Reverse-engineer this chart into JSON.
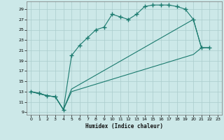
{
  "bg_color": "#cce8e8",
  "grid_color": "#aacccc",
  "line_color": "#1a7a6e",
  "xlabel": "Humidex (Indice chaleur)",
  "xlim": [
    -0.5,
    23.5
  ],
  "ylim": [
    8.5,
    30.5
  ],
  "xticks": [
    0,
    1,
    2,
    3,
    4,
    5,
    6,
    7,
    8,
    9,
    10,
    11,
    12,
    13,
    14,
    15,
    16,
    17,
    18,
    19,
    20,
    21,
    22,
    23
  ],
  "yticks": [
    9,
    11,
    13,
    15,
    17,
    19,
    21,
    23,
    25,
    27,
    29
  ],
  "curve1_x": [
    0,
    1,
    2,
    3,
    4,
    5,
    6,
    7,
    8,
    9,
    10,
    11,
    12,
    13,
    14,
    15,
    16,
    17,
    18,
    19,
    20,
    21,
    22
  ],
  "curve1_y": [
    13,
    12.7,
    12.2,
    12.0,
    9.5,
    20.0,
    22.0,
    23.5,
    25.0,
    25.5,
    28.0,
    27.5,
    27.0,
    28.0,
    29.5,
    29.8,
    29.8,
    29.8,
    29.5,
    29.0,
    27.0,
    21.5,
    21.5
  ],
  "curve2_x": [
    0,
    2,
    3,
    4,
    5,
    20,
    21,
    22
  ],
  "curve2_y": [
    13,
    12.2,
    12.0,
    9.5,
    13.5,
    27.0,
    21.5,
    21.5
  ],
  "curve3_x": [
    0,
    2,
    3,
    4,
    5,
    20,
    21,
    22
  ],
  "curve3_y": [
    13,
    12.2,
    12.0,
    9.5,
    13.0,
    20.2,
    21.5,
    21.5
  ]
}
